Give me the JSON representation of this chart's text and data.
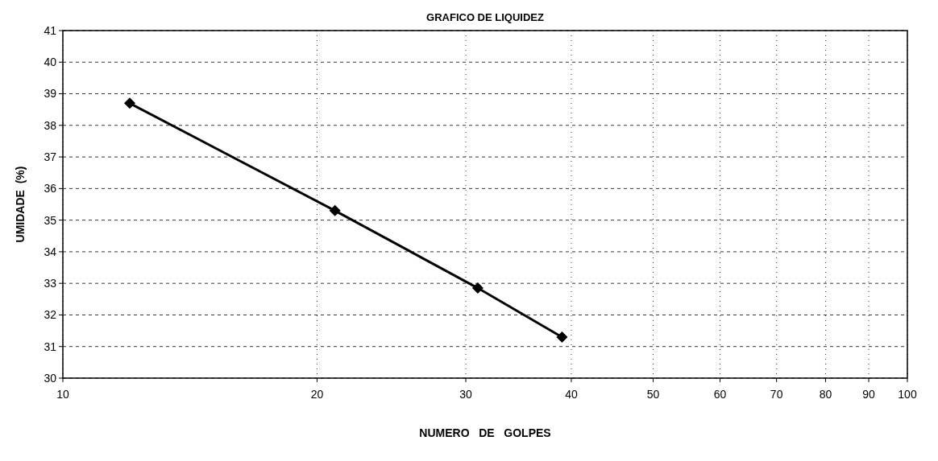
{
  "chart_data": {
    "type": "line",
    "title": "GRAFICO DE LIQUIDEZ",
    "xlabel": "NUMERO   DE   GOLPES",
    "ylabel": "UMIDADE  (%)",
    "x": [
      12,
      21,
      31,
      39
    ],
    "series": [
      {
        "color": "#000000",
        "values": [
          38.7,
          35.3,
          32.85,
          31.3
        ]
      }
    ],
    "log": "x",
    "xlim": [
      10,
      100
    ],
    "xticks": [
      10,
      20,
      30,
      40,
      50,
      60,
      70,
      80,
      90,
      100
    ],
    "ylim": [
      30,
      41
    ],
    "yticks": [
      30,
      31,
      32,
      33,
      34,
      35,
      36,
      37,
      38,
      39,
      40,
      41
    ],
    "grid": true,
    "marker": "diamond",
    "line_style": "solid"
  }
}
